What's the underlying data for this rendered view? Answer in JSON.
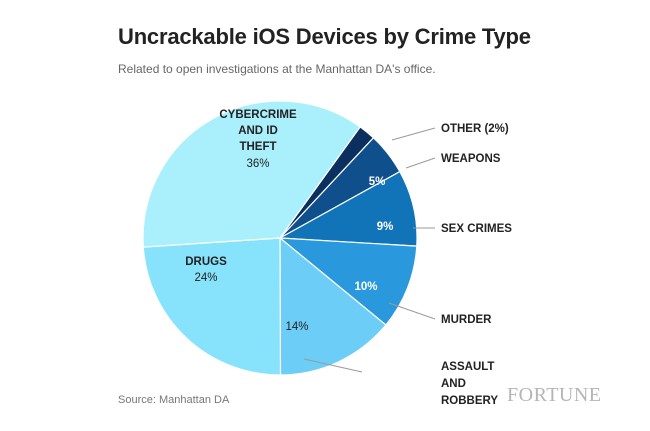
{
  "title": "Uncrackable iOS Devices by Crime Type",
  "subtitle": "Related to open investigations at the Manhattan DA's office.",
  "source": "Source: Manhattan DA",
  "brand": "FORTUNE",
  "chart_data": {
    "type": "pie",
    "title": "Uncrackable iOS Devices by Crime Type",
    "subtitle": "Related to open investigations at the Manhattan DA's office.",
    "slices": [
      {
        "label": "OTHER (2%)",
        "value": 2,
        "value_label": "",
        "color": "#0b2f5e",
        "label_placement": "outside"
      },
      {
        "label": "WEAPONS",
        "value": 5,
        "value_label": "5%",
        "color": "#0e4f8c",
        "label_placement": "outside"
      },
      {
        "label": "SEX CRIMES",
        "value": 9,
        "value_label": "9%",
        "color": "#1274b8",
        "label_placement": "outside"
      },
      {
        "label": "MURDER",
        "value": 10,
        "value_label": "10%",
        "color": "#2a98dc",
        "label_placement": "outside"
      },
      {
        "label": "ASSAULT AND ROBBERY",
        "value": 14,
        "value_label": "14%",
        "color": "#6ccdf6",
        "label_placement": "outside"
      },
      {
        "label": "DRUGS",
        "value": 24,
        "value_label": "24%",
        "color": "#87e3fb",
        "label_placement": "inside"
      },
      {
        "label": "CYBERCRIME AND ID THEFT",
        "value": 36,
        "value_label": "36%",
        "color": "#a9f0fc",
        "label_placement": "inside"
      }
    ]
  }
}
